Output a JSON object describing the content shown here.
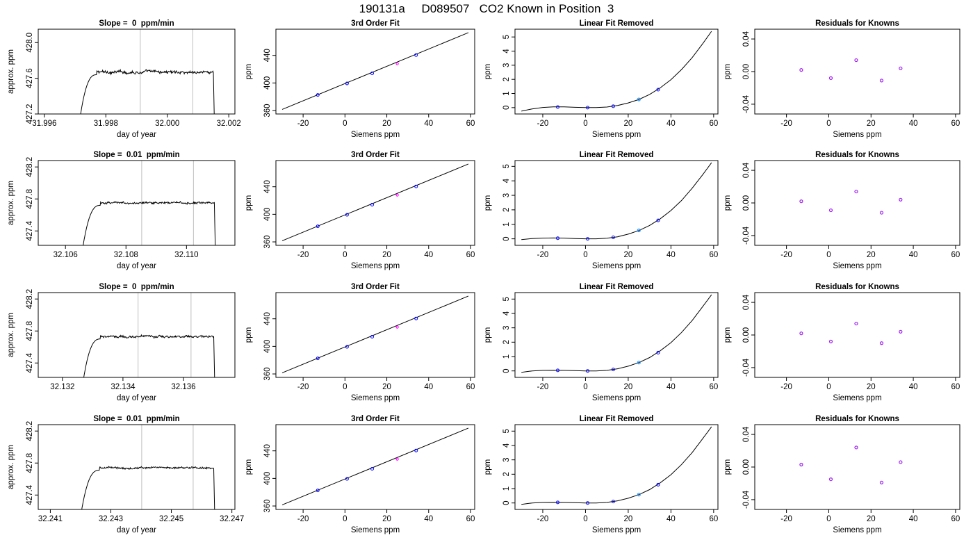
{
  "figure": {
    "title": "190131a     D089507   CO2 Known in Position  3"
  },
  "colors": {
    "axis": "#000000",
    "trace": "#000000",
    "window_line": "#bebebe",
    "known_point": "#0000ff",
    "unknown_point": "#ff00ff",
    "known_point_lf": "#1e90ff",
    "residual_point": "#a020f0"
  },
  "chart_data": [
    {
      "row": 1,
      "panel": "timeseries",
      "type": "line",
      "title": "Slope =  0  ppm/min",
      "xlabel": "day of year",
      "ylabel": "approx. ppm",
      "xlim": [
        31.9958,
        32.0022
      ],
      "ylim": [
        427.2,
        428.15
      ],
      "xticks": [
        31.996,
        31.998,
        32.0,
        32.002
      ],
      "xtick_labels": [
        "31.996",
        "31.998",
        "32.000",
        "32.002"
      ],
      "yticks": [
        427.2,
        427.6,
        428.0
      ],
      "ytick_labels": [
        "427.2",
        "427.6",
        "428.0"
      ],
      "window_lines": [
        31.99912,
        32.00083
      ],
      "trace": {
        "start": 31.9971,
        "plateau_start": 31.9977,
        "end": 32.0015,
        "base": 427.0,
        "level": 427.67,
        "noise": 0.025
      }
    },
    {
      "row": 1,
      "panel": "fit",
      "type": "scatter",
      "title": "3rd Order Fit",
      "xlabel": "Siemens ppm",
      "ylabel": "ppm",
      "xlim": [
        -33,
        62
      ],
      "ylim": [
        355,
        478
      ],
      "xticks": [
        -20,
        0,
        20,
        40,
        60
      ],
      "xtick_labels": [
        "-20",
        "0",
        "20",
        "40",
        "60"
      ],
      "yticks": [
        360,
        400,
        440
      ],
      "ytick_labels": [
        "360",
        "400",
        "440"
      ],
      "line": [
        [
          -30,
          361.6
        ],
        [
          59,
          473.0
        ]
      ],
      "points": [
        {
          "x": -13,
          "y": 382.6
        },
        {
          "x": 1,
          "y": 399.3
        },
        {
          "x": 13,
          "y": 414.0
        },
        {
          "x": 34,
          "y": 440.5
        }
      ],
      "unknown_points": [
        {
          "x": 25,
          "y": 428.0
        }
      ]
    },
    {
      "row": 1,
      "panel": "linear_removed",
      "type": "line",
      "title": "Linear Fit Removed",
      "xlabel": "Siemens ppm",
      "ylabel": "ppm",
      "xlim": [
        -33,
        62
      ],
      "ylim": [
        -0.45,
        5.55
      ],
      "xticks": [
        -20,
        0,
        20,
        40,
        60
      ],
      "xtick_labels": [
        "-20",
        "0",
        "20",
        "40",
        "60"
      ],
      "yticks": [
        0,
        1,
        2,
        3,
        4,
        5
      ],
      "ytick_labels": [
        "0",
        "1",
        "2",
        "3",
        "4",
        "5"
      ],
      "curve_x": [
        -30,
        -25,
        -20,
        -15,
        -10,
        -5,
        0,
        5,
        10,
        15,
        20,
        25,
        30,
        35,
        40,
        45,
        50,
        55,
        59
      ],
      "curve_y": [
        -0.25,
        -0.09,
        0.01,
        0.05,
        0.05,
        0.02,
        0.0,
        0.0,
        0.04,
        0.15,
        0.33,
        0.58,
        0.93,
        1.4,
        1.98,
        2.7,
        3.55,
        4.55,
        5.4
      ],
      "points": [
        {
          "x": -13,
          "y": 0.04
        },
        {
          "x": 1,
          "y": 0.0
        },
        {
          "x": 13,
          "y": 0.1
        },
        {
          "x": 34,
          "y": 1.27
        }
      ],
      "unknown_points": [
        {
          "x": 25,
          "y": 0.58
        }
      ]
    },
    {
      "row": 1,
      "panel": "residuals",
      "type": "scatter",
      "title": "Residuals for Knowns",
      "xlabel": "Siemens ppm",
      "ylabel": "ppm",
      "xlim": [
        -35,
        62
      ],
      "ylim": [
        -0.052,
        0.052
      ],
      "xticks": [
        -20,
        0,
        20,
        40,
        60
      ],
      "xtick_labels": [
        "-20",
        "0",
        "20",
        "40",
        "60"
      ],
      "yticks": [
        -0.04,
        0.0,
        0.04
      ],
      "ytick_labels": [
        "-0.04",
        "0.00",
        "0.04"
      ],
      "points": [
        {
          "x": -13,
          "y": 0.002
        },
        {
          "x": 1,
          "y": -0.008
        },
        {
          "x": 13,
          "y": 0.014
        },
        {
          "x": 25,
          "y": -0.011
        },
        {
          "x": 34,
          "y": 0.004
        }
      ]
    },
    {
      "row": 2,
      "panel": "timeseries",
      "type": "line",
      "title": "Slope =  0.01  ppm/min",
      "xlabel": "day of year",
      "ylabel": "approx. ppm",
      "xlim": [
        32.1051,
        32.1116
      ],
      "ylim": [
        427.22,
        428.28
      ],
      "xticks": [
        32.106,
        32.108,
        32.11
      ],
      "xtick_labels": [
        "32.106",
        "32.108",
        "32.110"
      ],
      "yticks": [
        427.4,
        427.8,
        428.2
      ],
      "ytick_labels": [
        "427.4",
        "427.8",
        "428.2"
      ],
      "window_lines": [
        32.10852,
        32.11023
      ],
      "trace": {
        "start": 32.1065,
        "plateau_start": 32.10715,
        "end": 32.11092,
        "base": 427.0,
        "level": 427.75,
        "noise": 0.02
      }
    },
    {
      "row": 2,
      "panel": "fit",
      "type": "scatter",
      "title": "3rd Order Fit",
      "xlabel": "Siemens ppm",
      "ylabel": "ppm",
      "xlim": [
        -33,
        62
      ],
      "ylim": [
        355,
        478
      ],
      "xticks": [
        -20,
        0,
        20,
        40,
        60
      ],
      "xtick_labels": [
        "-20",
        "0",
        "20",
        "40",
        "60"
      ],
      "yticks": [
        360,
        400,
        440
      ],
      "ytick_labels": [
        "360",
        "400",
        "440"
      ],
      "line": [
        [
          -30,
          361.6
        ],
        [
          59,
          473.0
        ]
      ],
      "points": [
        {
          "x": -13,
          "y": 382.6
        },
        {
          "x": 1,
          "y": 399.3
        },
        {
          "x": 13,
          "y": 414.0
        },
        {
          "x": 34,
          "y": 440.5
        }
      ],
      "unknown_points": [
        {
          "x": 25,
          "y": 428.0
        }
      ]
    },
    {
      "row": 2,
      "panel": "linear_removed",
      "type": "line",
      "title": "Linear Fit Removed",
      "xlabel": "Siemens ppm",
      "ylabel": "ppm",
      "xlim": [
        -33,
        62
      ],
      "ylim": [
        -0.45,
        5.4
      ],
      "xticks": [
        -20,
        0,
        20,
        40,
        60
      ],
      "xtick_labels": [
        "-20",
        "0",
        "20",
        "40",
        "60"
      ],
      "yticks": [
        0,
        1,
        2,
        3,
        4,
        5
      ],
      "ytick_labels": [
        "0",
        "1",
        "2",
        "3",
        "4",
        "5"
      ],
      "curve_x": [
        -30,
        -25,
        -20,
        -15,
        -10,
        -5,
        0,
        5,
        10,
        15,
        20,
        25,
        30,
        35,
        40,
        45,
        50,
        55,
        59
      ],
      "curve_y": [
        -0.05,
        0.02,
        0.05,
        0.06,
        0.05,
        0.02,
        0.0,
        0.0,
        0.04,
        0.14,
        0.32,
        0.57,
        0.92,
        1.38,
        1.95,
        2.65,
        3.5,
        4.45,
        5.25
      ],
      "points": [
        {
          "x": -13,
          "y": 0.04
        },
        {
          "x": 1,
          "y": 0.0
        },
        {
          "x": 13,
          "y": 0.1
        },
        {
          "x": 34,
          "y": 1.27
        }
      ],
      "unknown_points": [
        {
          "x": 25,
          "y": 0.58
        }
      ]
    },
    {
      "row": 2,
      "panel": "residuals",
      "type": "scatter",
      "title": "Residuals for Knowns",
      "xlabel": "Siemens ppm",
      "ylabel": "ppm",
      "xlim": [
        -35,
        62
      ],
      "ylim": [
        -0.052,
        0.052
      ],
      "xticks": [
        -20,
        0,
        20,
        40,
        60
      ],
      "xtick_labels": [
        "-20",
        "0",
        "20",
        "40",
        "60"
      ],
      "yticks": [
        -0.04,
        0.0,
        0.04
      ],
      "ytick_labels": [
        "-0.04",
        "0.00",
        "0.04"
      ],
      "points": [
        {
          "x": -13,
          "y": 0.002
        },
        {
          "x": 1,
          "y": -0.009
        },
        {
          "x": 13,
          "y": 0.014
        },
        {
          "x": 25,
          "y": -0.012
        },
        {
          "x": 34,
          "y": 0.004
        }
      ]
    },
    {
      "row": 3,
      "panel": "timeseries",
      "type": "line",
      "title": "Slope =  0  ppm/min",
      "xlabel": "day of year",
      "ylabel": "approx. ppm",
      "xlim": [
        32.1312,
        32.1377
      ],
      "ylim": [
        427.22,
        428.28
      ],
      "xticks": [
        32.132,
        32.134,
        32.136
      ],
      "xtick_labels": [
        "32.132",
        "32.134",
        "32.136"
      ],
      "yticks": [
        427.4,
        427.8,
        428.2
      ],
      "ytick_labels": [
        "427.4",
        "427.8",
        "428.2"
      ],
      "window_lines": [
        32.1345,
        32.13625
      ],
      "trace": {
        "start": 32.13262,
        "plateau_start": 32.13325,
        "end": 32.137,
        "base": 427.0,
        "level": 427.73,
        "noise": 0.02
      }
    },
    {
      "row": 3,
      "panel": "fit",
      "type": "scatter",
      "title": "3rd Order Fit",
      "xlabel": "Siemens ppm",
      "ylabel": "ppm",
      "xlim": [
        -33,
        62
      ],
      "ylim": [
        355,
        478
      ],
      "xticks": [
        -20,
        0,
        20,
        40,
        60
      ],
      "xtick_labels": [
        "-20",
        "0",
        "20",
        "40",
        "60"
      ],
      "yticks": [
        360,
        400,
        440
      ],
      "ytick_labels": [
        "360",
        "400",
        "440"
      ],
      "line": [
        [
          -30,
          361.6
        ],
        [
          59,
          473.0
        ]
      ],
      "points": [
        {
          "x": -13,
          "y": 382.6
        },
        {
          "x": 1,
          "y": 399.3
        },
        {
          "x": 13,
          "y": 414.0
        },
        {
          "x": 34,
          "y": 440.5
        }
      ],
      "unknown_points": [
        {
          "x": 25,
          "y": 428.0
        }
      ]
    },
    {
      "row": 3,
      "panel": "linear_removed",
      "type": "line",
      "title": "Linear Fit Removed",
      "xlabel": "Siemens ppm",
      "ylabel": "ppm",
      "xlim": [
        -33,
        62
      ],
      "ylim": [
        -0.45,
        5.45
      ],
      "xticks": [
        -20,
        0,
        20,
        40,
        60
      ],
      "xtick_labels": [
        "-20",
        "0",
        "20",
        "40",
        "60"
      ],
      "yticks": [
        0,
        1,
        2,
        3,
        4,
        5
      ],
      "ytick_labels": [
        "0",
        "1",
        "2",
        "3",
        "4",
        "5"
      ],
      "curve_x": [
        -30,
        -25,
        -20,
        -15,
        -10,
        -5,
        0,
        5,
        10,
        15,
        20,
        25,
        30,
        35,
        40,
        45,
        50,
        55,
        59
      ],
      "curve_y": [
        -0.1,
        0.0,
        0.04,
        0.05,
        0.04,
        0.02,
        0.0,
        0.0,
        0.04,
        0.15,
        0.33,
        0.58,
        0.93,
        1.4,
        1.97,
        2.68,
        3.52,
        4.5,
        5.3
      ],
      "points": [
        {
          "x": -13,
          "y": 0.04
        },
        {
          "x": 1,
          "y": 0.0
        },
        {
          "x": 13,
          "y": 0.1
        },
        {
          "x": 34,
          "y": 1.27
        }
      ],
      "unknown_points": [
        {
          "x": 25,
          "y": 0.58
        }
      ]
    },
    {
      "row": 3,
      "panel": "residuals",
      "type": "scatter",
      "title": "Residuals for Knowns",
      "xlabel": "Siemens ppm",
      "ylabel": "ppm",
      "xlim": [
        -35,
        62
      ],
      "ylim": [
        -0.052,
        0.052
      ],
      "xticks": [
        -20,
        0,
        20,
        40,
        60
      ],
      "xtick_labels": [
        "-20",
        "0",
        "20",
        "40",
        "60"
      ],
      "yticks": [
        -0.04,
        0.0,
        0.04
      ],
      "ytick_labels": [
        "-0.04",
        "0.00",
        "0.04"
      ],
      "points": [
        {
          "x": -13,
          "y": 0.002
        },
        {
          "x": 1,
          "y": -0.008
        },
        {
          "x": 13,
          "y": 0.014
        },
        {
          "x": 25,
          "y": -0.01
        },
        {
          "x": 34,
          "y": 0.004
        }
      ]
    },
    {
      "row": 4,
      "panel": "timeseries",
      "type": "line",
      "title": "Slope =  0.01  ppm/min",
      "xlabel": "day of year",
      "ylabel": "approx. ppm",
      "xlim": [
        32.2406,
        32.2471
      ],
      "ylim": [
        427.22,
        428.28
      ],
      "xticks": [
        32.241,
        32.243,
        32.245,
        32.247
      ],
      "xtick_labels": [
        "32.241",
        "32.243",
        "32.245",
        "32.247"
      ],
      "yticks": [
        427.4,
        427.8,
        428.2
      ],
      "ytick_labels": [
        "427.4",
        "427.8",
        "428.2"
      ],
      "window_lines": [
        32.24402,
        32.24572
      ],
      "trace": {
        "start": 32.24195,
        "plateau_start": 32.24262,
        "end": 32.2464,
        "base": 427.0,
        "level": 427.74,
        "noise": 0.02
      }
    },
    {
      "row": 4,
      "panel": "fit",
      "type": "scatter",
      "title": "3rd Order Fit",
      "xlabel": "Siemens ppm",
      "ylabel": "ppm",
      "xlim": [
        -33,
        62
      ],
      "ylim": [
        355,
        478
      ],
      "xticks": [
        -20,
        0,
        20,
        40,
        60
      ],
      "xtick_labels": [
        "-20",
        "0",
        "20",
        "40",
        "60"
      ],
      "yticks": [
        360,
        400,
        440
      ],
      "ytick_labels": [
        "360",
        "400",
        "440"
      ],
      "line": [
        [
          -30,
          361.6
        ],
        [
          59,
          473.0
        ]
      ],
      "points": [
        {
          "x": -13,
          "y": 382.6
        },
        {
          "x": 1,
          "y": 399.3
        },
        {
          "x": 13,
          "y": 414.0
        },
        {
          "x": 34,
          "y": 440.5
        }
      ],
      "unknown_points": [
        {
          "x": 25,
          "y": 428.0
        }
      ]
    },
    {
      "row": 4,
      "panel": "linear_removed",
      "type": "line",
      "title": "Linear Fit Removed",
      "xlabel": "Siemens ppm",
      "ylabel": "ppm",
      "xlim": [
        -33,
        62
      ],
      "ylim": [
        -0.45,
        5.45
      ],
      "xticks": [
        -20,
        0,
        20,
        40,
        60
      ],
      "xtick_labels": [
        "-20",
        "0",
        "20",
        "40",
        "60"
      ],
      "yticks": [
        0,
        1,
        2,
        3,
        4,
        5
      ],
      "ytick_labels": [
        "0",
        "1",
        "2",
        "3",
        "4",
        "5"
      ],
      "curve_x": [
        -30,
        -25,
        -20,
        -15,
        -10,
        -5,
        0,
        5,
        10,
        15,
        20,
        25,
        30,
        35,
        40,
        45,
        50,
        55,
        59
      ],
      "curve_y": [
        -0.1,
        0.0,
        0.04,
        0.05,
        0.04,
        0.02,
        0.0,
        0.0,
        0.04,
        0.15,
        0.33,
        0.58,
        0.93,
        1.4,
        1.97,
        2.68,
        3.52,
        4.5,
        5.3
      ],
      "points": [
        {
          "x": -13,
          "y": 0.04
        },
        {
          "x": 1,
          "y": 0.0
        },
        {
          "x": 13,
          "y": 0.1
        },
        {
          "x": 34,
          "y": 1.27
        }
      ],
      "unknown_points": [
        {
          "x": 25,
          "y": 0.58
        }
      ]
    },
    {
      "row": 4,
      "panel": "residuals",
      "type": "scatter",
      "title": "Residuals for Knowns",
      "xlabel": "Siemens ppm",
      "ylabel": "ppm",
      "xlim": [
        -35,
        62
      ],
      "ylim": [
        -0.052,
        0.052
      ],
      "xticks": [
        -20,
        0,
        20,
        40,
        60
      ],
      "xtick_labels": [
        "-20",
        "0",
        "20",
        "40",
        "60"
      ],
      "yticks": [
        -0.04,
        0.0,
        0.04
      ],
      "ytick_labels": [
        "-0.04",
        "0.00",
        "0.04"
      ],
      "points": [
        {
          "x": -13,
          "y": 0.003
        },
        {
          "x": 1,
          "y": -0.015
        },
        {
          "x": 13,
          "y": 0.024
        },
        {
          "x": 25,
          "y": -0.019
        },
        {
          "x": 34,
          "y": 0.006
        }
      ]
    }
  ]
}
